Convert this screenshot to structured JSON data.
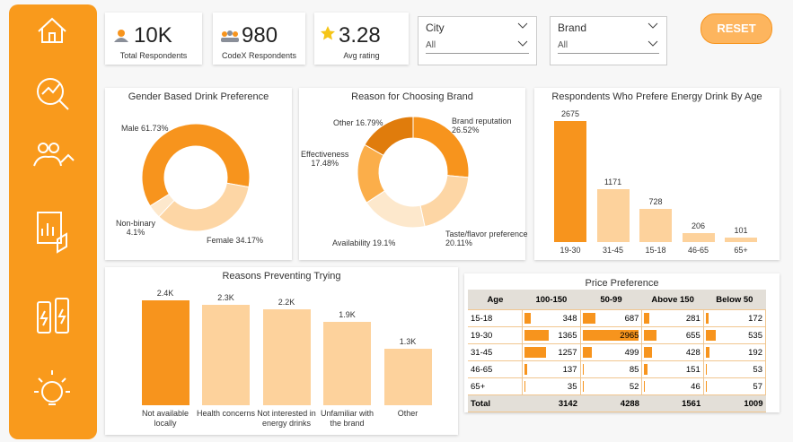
{
  "kpis": [
    {
      "value": "10K",
      "label": "Total Respondents"
    },
    {
      "value": "980",
      "label": "CodeX Respondents"
    },
    {
      "value": "3.28",
      "label": "Avg rating"
    }
  ],
  "filters": [
    {
      "label": "City",
      "value": "All"
    },
    {
      "label": "Brand",
      "value": "All"
    }
  ],
  "reset": "RESET",
  "chart_data": [
    {
      "type": "donut",
      "title": "Gender Based Drink Preference",
      "categories": [
        "Male",
        "Female",
        "Non-binary"
      ],
      "values": [
        61.73,
        34.17,
        4.1
      ],
      "value_labels": [
        "61.73%",
        "34.17%",
        "4.1%"
      ],
      "colors": [
        "#f7941d",
        "#fdd6a5",
        "#fde8cc"
      ]
    },
    {
      "type": "donut",
      "title": "Reason for Choosing Brand",
      "categories": [
        "Brand reputation",
        "Taste/flavor preference",
        "Availability",
        "Effectiveness",
        "Other"
      ],
      "values": [
        26.52,
        20.11,
        19.1,
        17.48,
        16.79
      ],
      "value_labels": [
        "26.52%",
        "20.11%",
        "19.1%",
        "17.48%",
        "16.79%"
      ],
      "colors": [
        "#f7941d",
        "#fdd6a5",
        "#fde8cc",
        "#fbae4a",
        "#e07c0c"
      ]
    },
    {
      "type": "bar",
      "title": "Respondents Who Prefere Energy Drink By Age",
      "categories": [
        "19-30",
        "31-45",
        "15-18",
        "46-65",
        "65+"
      ],
      "values": [
        2675,
        1171,
        728,
        206,
        101
      ],
      "colors": [
        "#f7941d",
        "#fdd29c",
        "#fdd29c",
        "#fdd29c",
        "#fdd29c"
      ]
    },
    {
      "type": "bar",
      "title": "Reasons Preventing Trying",
      "categories": [
        "Not available locally",
        "Health concerns",
        "Not interested in energy drinks",
        "Unfamiliar with the brand",
        "Other"
      ],
      "values": [
        2400,
        2300,
        2200,
        1900,
        1300
      ],
      "value_labels": [
        "2.4K",
        "2.3K",
        "2.2K",
        "1.9K",
        "1.3K"
      ],
      "colors": [
        "#f7941d",
        "#fdd29c",
        "#fdd29c",
        "#fdd29c",
        "#fdd29c"
      ]
    }
  ],
  "table": {
    "title": "Price Preference",
    "columns": [
      "Age",
      "100-150",
      "50-99",
      "Above 150",
      "Below 50"
    ],
    "rows": [
      [
        "15-18",
        348,
        687,
        281,
        172
      ],
      [
        "19-30",
        1365,
        2965,
        655,
        535
      ],
      [
        "31-45",
        1257,
        499,
        428,
        192
      ],
      [
        "46-65",
        137,
        85,
        151,
        53
      ],
      [
        "65+",
        35,
        52,
        46,
        57
      ]
    ],
    "total": [
      "Total",
      3142,
      4288,
      1561,
      1009
    ],
    "bar_color": "#f7941d"
  }
}
